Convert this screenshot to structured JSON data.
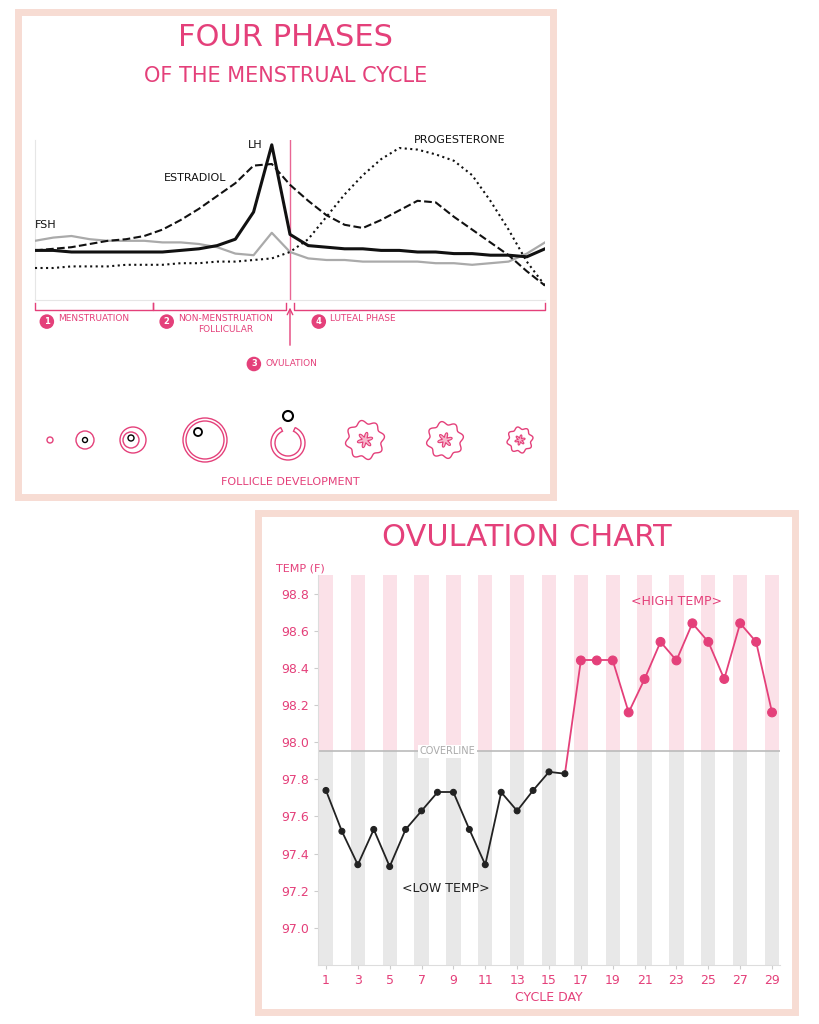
{
  "chart_data": [
    {
      "type": "line",
      "title": "FOUR PHASES",
      "subtitle": "OF THE MENSTRUAL CYCLE",
      "x": [
        0,
        1,
        2,
        3,
        4,
        5,
        6,
        7,
        8,
        9,
        10,
        11,
        12,
        13,
        14,
        15,
        16,
        17,
        18,
        19,
        20,
        21,
        22,
        23,
        24,
        25,
        26,
        27,
        28
      ],
      "xlim": [
        0,
        28
      ],
      "ylim": [
        0,
        10
      ],
      "tick_labels": false,
      "series": [
        {
          "name": "FSH",
          "color": "#aaaaaa",
          "line_style": "solid",
          "values": [
            3.7,
            3.9,
            4.0,
            3.8,
            3.7,
            3.7,
            3.7,
            3.6,
            3.6,
            3.5,
            3.3,
            2.9,
            2.8,
            4.2,
            3.0,
            2.6,
            2.5,
            2.5,
            2.4,
            2.4,
            2.4,
            2.4,
            2.3,
            2.3,
            2.2,
            2.3,
            2.4,
            2.9,
            3.6
          ]
        },
        {
          "name": "ESTRADIOL",
          "color": "#111111",
          "line_style": "dashed",
          "values": [
            3.1,
            3.2,
            3.3,
            3.5,
            3.7,
            3.8,
            4.0,
            4.4,
            5.0,
            5.7,
            6.5,
            7.3,
            8.4,
            8.5,
            7.2,
            6.2,
            5.3,
            4.7,
            4.5,
            5.0,
            5.6,
            6.2,
            6.1,
            5.2,
            4.4,
            3.6,
            2.8,
            1.8,
            0.9
          ]
        },
        {
          "name": "LH",
          "color": "#111111",
          "line_style": "solid",
          "values": [
            3.1,
            3.1,
            3.0,
            3.0,
            3.0,
            3.0,
            3.0,
            3.0,
            3.1,
            3.2,
            3.4,
            3.8,
            5.5,
            9.7,
            4.1,
            3.4,
            3.3,
            3.2,
            3.2,
            3.1,
            3.1,
            3.0,
            3.0,
            2.9,
            2.9,
            2.8,
            2.8,
            2.7,
            3.2
          ]
        },
        {
          "name": "PROGESTERONE",
          "color": "#111111",
          "line_style": "dotted",
          "values": [
            2.0,
            2.0,
            2.1,
            2.1,
            2.1,
            2.2,
            2.2,
            2.2,
            2.3,
            2.3,
            2.4,
            2.4,
            2.5,
            2.6,
            3.0,
            3.8,
            5.2,
            6.6,
            7.8,
            8.8,
            9.5,
            9.4,
            9.1,
            8.7,
            7.8,
            6.2,
            4.4,
            2.4,
            0.9
          ]
        }
      ],
      "phases": [
        {
          "number": 1,
          "label": "MENSTRUATION",
          "start": 0,
          "end": 6.5
        },
        {
          "number": 2,
          "label": "NON-MENSTRUATION\nFOLLICULAR",
          "start": 6.5,
          "end": 13.8
        },
        {
          "number": 3,
          "label": "OVULATION",
          "start": 14,
          "end": 14
        },
        {
          "number": 4,
          "label": "LUTEAL PHASE",
          "start": 14.2,
          "end": 28
        }
      ],
      "annotations": [
        "FOLLICLE DEVELOPMENT"
      ]
    },
    {
      "type": "line",
      "title": "OVULATION CHART",
      "x_label": "CYCLE DAY",
      "y_label": "TEMP (F)",
      "x": [
        1,
        2,
        3,
        4,
        5,
        6,
        7,
        8,
        9,
        10,
        11,
        12,
        13,
        14,
        15,
        16,
        17,
        18,
        19,
        20,
        21,
        22,
        23,
        24,
        25,
        26,
        27,
        28,
        29
      ],
      "values": [
        97.74,
        97.52,
        97.34,
        97.53,
        97.33,
        97.53,
        97.63,
        97.73,
        97.73,
        97.53,
        97.34,
        97.73,
        97.63,
        97.74,
        97.84,
        97.83,
        98.44,
        98.44,
        98.44,
        98.16,
        98.34,
        98.54,
        98.44,
        98.64,
        98.54,
        98.34,
        98.64,
        98.54,
        98.16
      ],
      "colors": [
        "#222222",
        "#222222",
        "#222222",
        "#222222",
        "#222222",
        "#222222",
        "#222222",
        "#222222",
        "#222222",
        "#222222",
        "#222222",
        "#222222",
        "#222222",
        "#222222",
        "#222222",
        "#222222",
        "#e4407a",
        "#e4407a",
        "#e4407a",
        "#e4407a",
        "#e4407a",
        "#e4407a",
        "#e4407a",
        "#e4407a",
        "#e4407a",
        "#e4407a",
        "#e4407a",
        "#e4407a",
        "#e4407a"
      ],
      "marker": "circle",
      "xlim": [
        0.5,
        29.5
      ],
      "ylim": [
        96.8,
        98.9
      ],
      "xticks": [
        1,
        3,
        5,
        7,
        9,
        11,
        13,
        15,
        17,
        19,
        21,
        23,
        25,
        27,
        29
      ],
      "yticks": [
        {
          "value": 97.0,
          "label": "97.0"
        },
        97.2,
        97.4,
        97.6,
        97.8,
        {
          "value": 98.0,
          "label": "98.0"
        },
        98.2,
        98.4,
        98.6,
        98.8
      ],
      "coverline": {
        "value": 97.95,
        "label": "COVERLINE"
      },
      "annotations": [
        "<LOW TEMP>",
        "<HIGH TEMP>"
      ]
    }
  ]
}
